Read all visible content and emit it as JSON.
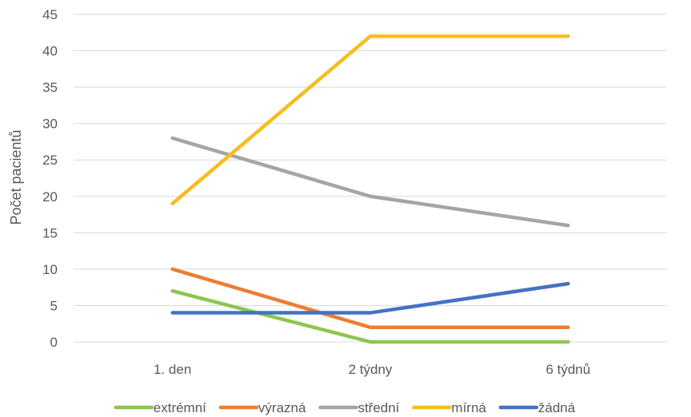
{
  "chart_data": {
    "type": "line",
    "title": "",
    "xlabel": "",
    "ylabel": "Počet pacientů",
    "ylim": [
      0,
      45
    ],
    "yticks": [
      0,
      5,
      10,
      15,
      20,
      25,
      30,
      35,
      40,
      45
    ],
    "categories": [
      "1. den",
      "2 týdny",
      "6 týdnů"
    ],
    "grid": true,
    "legend_position": "bottom",
    "series": [
      {
        "name": "extrémní",
        "color": "#8ec550",
        "values": [
          7,
          0,
          0
        ]
      },
      {
        "name": "výrazná",
        "color": "#ed7d31",
        "values": [
          10,
          2,
          2
        ]
      },
      {
        "name": "střední",
        "color": "#a5a5a5",
        "values": [
          28,
          20,
          16
        ]
      },
      {
        "name": "mírná",
        "color": "#f6bd1f",
        "values": [
          19,
          42,
          42
        ]
      },
      {
        "name": "žádná",
        "color": "#4472c4",
        "values": [
          4,
          4,
          8
        ]
      }
    ]
  }
}
